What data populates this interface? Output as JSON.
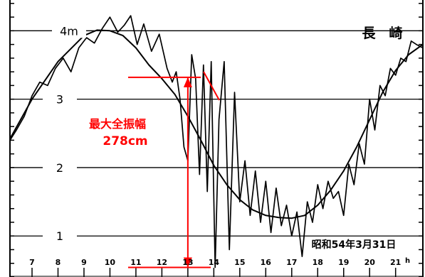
{
  "chart_data": {
    "type": "line",
    "title": "長　崎",
    "date_label": "昭和54年3月31日",
    "xlabel": "",
    "ylabel": "",
    "x_unit": "h",
    "x_ticks": [
      7,
      8,
      9,
      10,
      11,
      12,
      13,
      14,
      15,
      16,
      17,
      18,
      19,
      20,
      21
    ],
    "x_range": [
      6.15,
      22.05
    ],
    "y_ticks": [
      {
        "value": 1,
        "label": "1"
      },
      {
        "value": 2,
        "label": "2"
      },
      {
        "value": 3,
        "label": "3"
      },
      {
        "value": 4,
        "label": "4m"
      }
    ],
    "y_range": [
      0.4,
      4.45
    ],
    "grid": "horizontal",
    "annotation": {
      "line1": "最大全振幅",
      "line2": "278cm",
      "top_value": 3.32,
      "bottom_value": 0.54,
      "x_at": 13.0,
      "color": "#ff0000"
    },
    "series": [
      {
        "role": "tide-smoothed",
        "x": [
          6.15,
          7,
          8,
          9,
          9.5,
          10,
          10.5,
          11,
          11.5,
          12,
          12.5,
          13,
          13.5,
          14,
          14.5,
          15,
          15.5,
          16,
          16.5,
          17,
          17.5,
          18,
          18.5,
          19,
          19.5,
          20,
          20.5,
          21,
          21.5,
          22.05
        ],
        "y": [
          2.42,
          3.0,
          3.55,
          3.93,
          4.01,
          4.0,
          3.93,
          3.75,
          3.5,
          3.3,
          3.07,
          2.75,
          2.4,
          2.03,
          1.75,
          1.53,
          1.38,
          1.3,
          1.27,
          1.26,
          1.3,
          1.45,
          1.67,
          1.95,
          2.3,
          2.7,
          3.1,
          3.42,
          3.65,
          3.8
        ]
      },
      {
        "role": "observed",
        "x": [
          6.15,
          6.4,
          6.7,
          7.0,
          7.3,
          7.6,
          7.9,
          8.2,
          8.5,
          8.8,
          9.1,
          9.4,
          9.7,
          10.0,
          10.3,
          10.55,
          10.8,
          11.05,
          11.3,
          11.6,
          11.9,
          12.2,
          12.4,
          12.55,
          12.7,
          12.85,
          13.0,
          13.15,
          13.3,
          13.45,
          13.6,
          13.75,
          13.9,
          14.05,
          14.2,
          14.4,
          14.6,
          14.8,
          15.0,
          15.2,
          15.4,
          15.6,
          15.8,
          16.0,
          16.2,
          16.4,
          16.6,
          16.8,
          17.0,
          17.2,
          17.4,
          17.6,
          17.8,
          18.0,
          18.2,
          18.4,
          18.6,
          18.8,
          19.0,
          19.2,
          19.4,
          19.6,
          19.8,
          20.0,
          20.2,
          20.4,
          20.6,
          20.8,
          21.0,
          21.2,
          21.4,
          21.6,
          21.8,
          22.05
        ],
        "y": [
          2.4,
          2.55,
          2.75,
          3.05,
          3.25,
          3.2,
          3.45,
          3.6,
          3.4,
          3.75,
          3.9,
          3.82,
          4.03,
          4.2,
          3.98,
          4.08,
          4.22,
          3.8,
          4.1,
          3.7,
          3.95,
          3.45,
          3.25,
          3.4,
          3.0,
          2.3,
          2.1,
          3.65,
          3.3,
          1.9,
          3.5,
          1.65,
          3.55,
          0.54,
          2.7,
          3.55,
          0.8,
          3.1,
          1.5,
          2.1,
          1.3,
          1.95,
          1.2,
          1.8,
          1.05,
          1.7,
          1.15,
          1.45,
          1.0,
          1.35,
          0.7,
          1.5,
          1.2,
          1.75,
          1.4,
          1.8,
          1.55,
          1.65,
          1.3,
          2.05,
          1.75,
          2.35,
          2.05,
          3.0,
          2.55,
          3.2,
          3.05,
          3.45,
          3.35,
          3.6,
          3.55,
          3.85,
          3.8,
          3.75
        ]
      }
    ]
  }
}
